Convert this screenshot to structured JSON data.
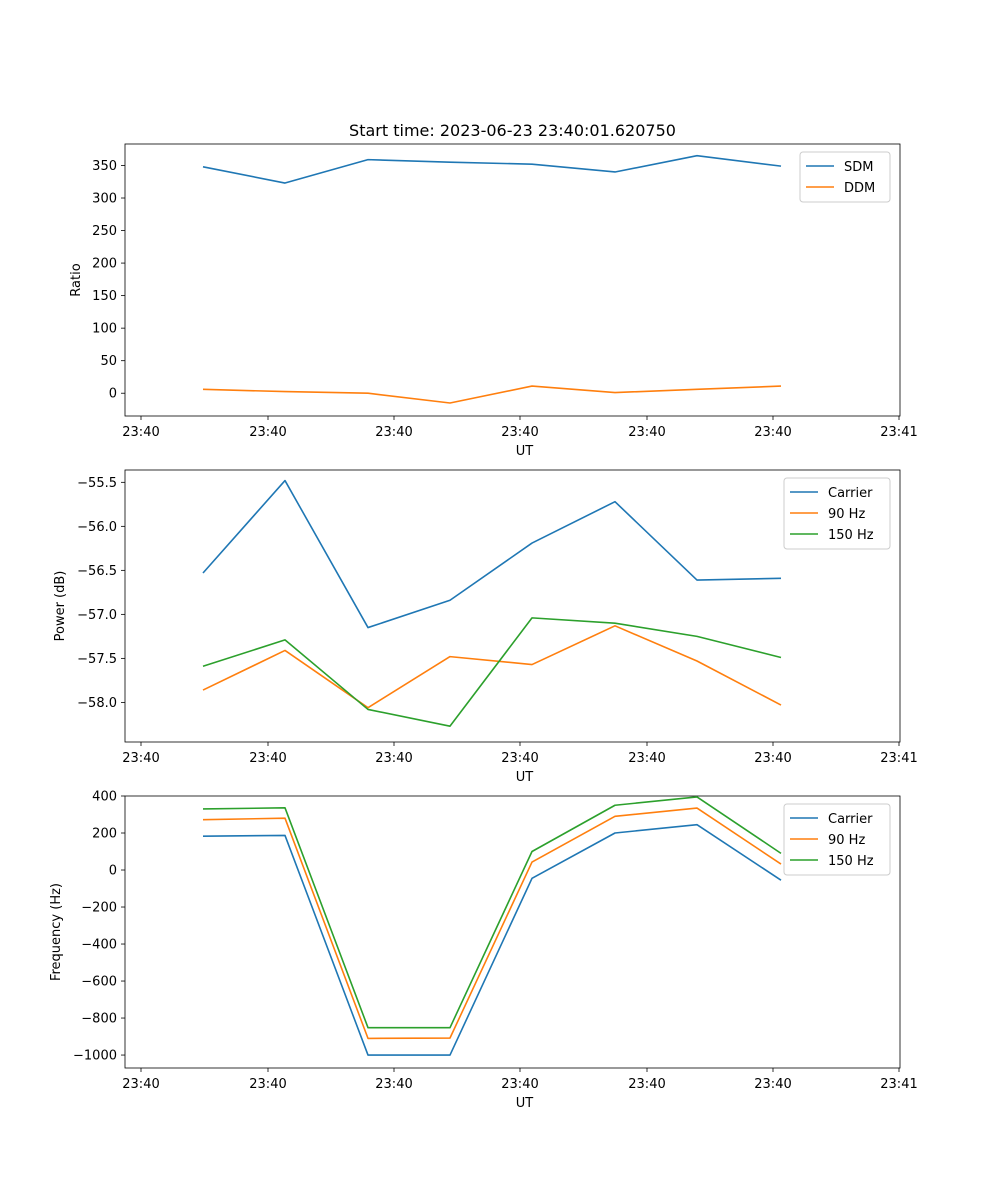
{
  "chart_data": [
    {
      "type": "line",
      "title": "Start time: 2023-06-23 23:40:01.620750",
      "xlabel": "UT",
      "ylabel": "Ratio",
      "x_tick_labels": [
        "23:40",
        "23:40",
        "23:40",
        "23:40",
        "23:40",
        "23:40",
        "23:40",
        "23:41"
      ],
      "y_ticks": [
        0,
        50,
        100,
        150,
        200,
        250,
        300,
        350
      ],
      "ylim": [
        -35,
        383
      ],
      "legend_position": "upper right",
      "grid": false,
      "series": [
        {
          "name": "SDM",
          "color": "#1f77b4",
          "values": [
            348,
            323,
            359,
            355,
            352,
            340,
            365,
            349
          ]
        },
        {
          "name": "DDM",
          "color": "#ff7f0e",
          "values": [
            6,
            2.5,
            0,
            -15,
            11,
            1,
            6,
            11
          ]
        }
      ]
    },
    {
      "type": "line",
      "title": "",
      "xlabel": "UT",
      "ylabel": "Power (dB)",
      "x_tick_labels": [
        "23:40",
        "23:40",
        "23:40",
        "23:40",
        "23:40",
        "23:40",
        "23:40",
        "23:41"
      ],
      "y_ticks": [
        -58.0,
        -57.5,
        -57.0,
        -56.5,
        -56.0,
        -55.5
      ],
      "y_tick_labels": [
        "−58.0",
        "−57.5",
        "−57.0",
        "−56.5",
        "−56.0",
        "−55.5"
      ],
      "ylim": [
        -58.45,
        -55.36
      ],
      "legend_position": "upper right",
      "grid": false,
      "series": [
        {
          "name": "Carrier",
          "color": "#1f77b4",
          "values": [
            -56.53,
            -55.48,
            -57.15,
            -56.84,
            -56.19,
            -55.72,
            -56.61,
            -56.59
          ]
        },
        {
          "name": "90 Hz",
          "color": "#ff7f0e",
          "values": [
            -57.86,
            -57.41,
            -58.06,
            -57.48,
            -57.57,
            -57.13,
            -57.53,
            -58.03
          ]
        },
        {
          "name": "150 Hz",
          "color": "#2ca02c",
          "values": [
            -57.59,
            -57.29,
            -58.08,
            -58.27,
            -57.04,
            -57.1,
            -57.25,
            -57.49
          ]
        }
      ]
    },
    {
      "type": "line",
      "title": "",
      "xlabel": "UT",
      "ylabel": "Frequency (Hz)",
      "x_tick_labels": [
        "23:40",
        "23:40",
        "23:40",
        "23:40",
        "23:40",
        "23:40",
        "23:40",
        "23:41"
      ],
      "y_ticks": [
        -1000,
        -800,
        -600,
        -400,
        -200,
        0,
        200,
        400
      ],
      "y_tick_labels": [
        "−1000",
        "−800",
        "−600",
        "−400",
        "−200",
        "0",
        "200",
        "400"
      ],
      "ylim": [
        -1070,
        400
      ],
      "legend_position": "upper right",
      "grid": false,
      "series": [
        {
          "name": "Carrier",
          "color": "#1f77b4",
          "values": [
            183,
            187,
            -1000,
            -1000,
            -45,
            200,
            245,
            -55
          ]
        },
        {
          "name": "90 Hz",
          "color": "#ff7f0e",
          "values": [
            272,
            280,
            -910,
            -908,
            43,
            290,
            335,
            32
          ]
        },
        {
          "name": "150 Hz",
          "color": "#2ca02c",
          "values": [
            330,
            336,
            -852,
            -852,
            100,
            350,
            395,
            90
          ]
        }
      ]
    }
  ]
}
